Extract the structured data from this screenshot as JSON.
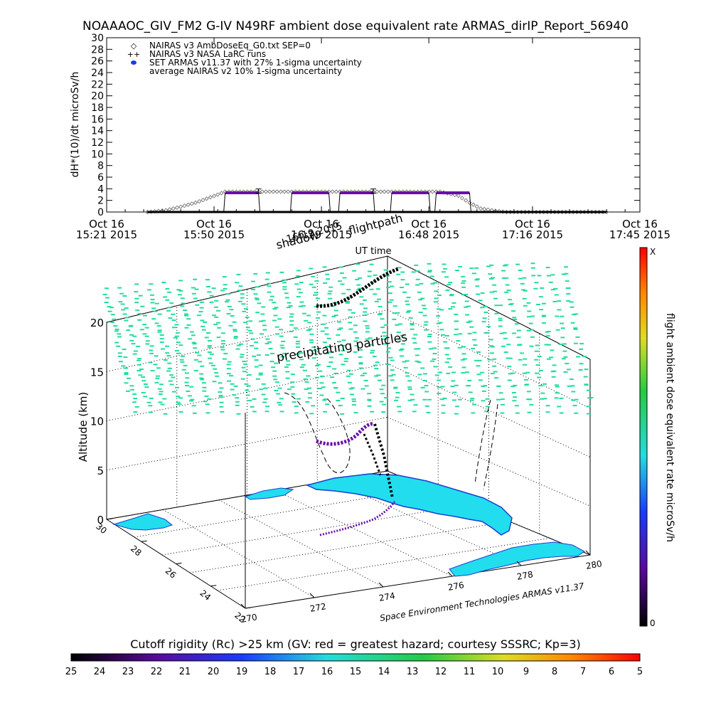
{
  "title": "NOAAAOC_GIV_FM2 G-IV    N49RF  ambient dose equivalent rate ARMAS_dirIP_Report_56940",
  "colors": {
    "nairas_v3": "#666666",
    "armas": "#6a0dad",
    "nairas_v2": "#000000",
    "precip": "#22dd99",
    "land": "#22ddee",
    "coast": "#1b3fd0"
  },
  "chart_data": [
    {
      "type": "line",
      "ylabel": "dH*(10)/dt microSv/h",
      "xlabel": "UT time",
      "ylim": [
        0,
        30
      ],
      "yticks": [
        0,
        2,
        4,
        6,
        8,
        10,
        12,
        14,
        16,
        18,
        20,
        22,
        24,
        26,
        28,
        30
      ],
      "x_range_minutes": [
        0,
        144
      ],
      "xticks": [
        {
          "minute": 0,
          "line1": "Oct 16",
          "line2": "15:21 2015"
        },
        {
          "minute": 29,
          "line1": "Oct 16",
          "line2": "15:50 2015"
        },
        {
          "minute": 58,
          "line1": "Oct 16",
          "line2": "16:19 2015"
        },
        {
          "minute": 87,
          "line1": "Oct 16",
          "line2": "16:48 2015"
        },
        {
          "minute": 115,
          "line1": "Oct 16",
          "line2": "17:16 2015"
        },
        {
          "minute": 144,
          "line1": "Oct 16",
          "line2": "17:45 2015"
        }
      ],
      "legend": [
        {
          "symbol": "◇",
          "label": "NAIRAS v3 AmbDoseEq_G0.txt SEP=0"
        },
        {
          "symbol": "++",
          "label": "NAIRAS v3 NASA LaRC runs"
        },
        {
          "symbol": "●",
          "label": "SET ARMAS v11.37 with 27% 1-sigma uncertainty"
        },
        {
          "symbol": "",
          "label": "average NAIRAS v2 10% 1-sigma uncertainty"
        }
      ],
      "series": [
        {
          "name": "NAIRAS v3 AmbDoseEq_G0.txt SEP=0",
          "x": [
            11,
            16,
            20,
            24,
            27,
            30,
            32,
            60,
            90,
            95,
            98,
            101,
            105,
            108,
            112,
            120,
            130,
            135
          ],
          "y": [
            0,
            0.3,
            0.9,
            1.6,
            2.3,
            3.0,
            3.5,
            3.5,
            3.5,
            2.8,
            1.6,
            0.6,
            0.2,
            0,
            0,
            0,
            0,
            0
          ]
        },
        {
          "name": "SET ARMAS v11.37 with 27% 1-sigma uncertainty",
          "segments": [
            {
              "x": [
                32,
                41
              ],
              "y": 3.3
            },
            {
              "x": [
                50,
                60
              ],
              "y": 3.3
            },
            {
              "x": [
                63,
                72
              ],
              "y": 3.3
            },
            {
              "x": [
                77,
                87
              ],
              "y": 3.3
            },
            {
              "x": [
                89,
                98
              ],
              "y": 3.3
            }
          ],
          "baseline_x": [
            11,
            135
          ],
          "baseline_y": 0
        },
        {
          "name": "average NAIRAS v2 10% 1-sigma uncertainty",
          "errorbars": [
            {
              "x": 41,
              "y": 3.6
            },
            {
              "x": 72,
              "y": 3.6
            }
          ]
        }
      ]
    },
    {
      "type": "scatter",
      "ylabel": "Altitude (km)",
      "zticks": [
        "0",
        "5",
        "10",
        "15",
        "20"
      ],
      "lat_ticks": [
        "30",
        "28",
        "26",
        "24",
        "22"
      ],
      "lon_ticks": [
        "270",
        "272",
        "274",
        "276",
        "278",
        "280"
      ],
      "annotations": [
        "precipitating particles",
        "flightpath",
        "shadow",
        "16:19 2015"
      ],
      "credit": "Space Environment Technologies ARMAS v11.37"
    },
    {
      "type": "heatmap",
      "name": "colorbar-dose",
      "label": "flight ambient dose equivalent rate microSv/h",
      "min_label": "0",
      "max_label": "X"
    },
    {
      "type": "heatmap",
      "name": "colorbar-cutoff",
      "title": "Cutoff rigidity (Rc) >25 km (GV: red = greatest hazard; courtesy SSSRC; Kp=3)",
      "ticks": [
        "25",
        "24",
        "23",
        "22",
        "21",
        "20",
        "19",
        "18",
        "17",
        "16",
        "15",
        "14",
        "13",
        "12",
        "11",
        "10",
        "9",
        "8",
        "7",
        "6",
        "5"
      ]
    }
  ]
}
